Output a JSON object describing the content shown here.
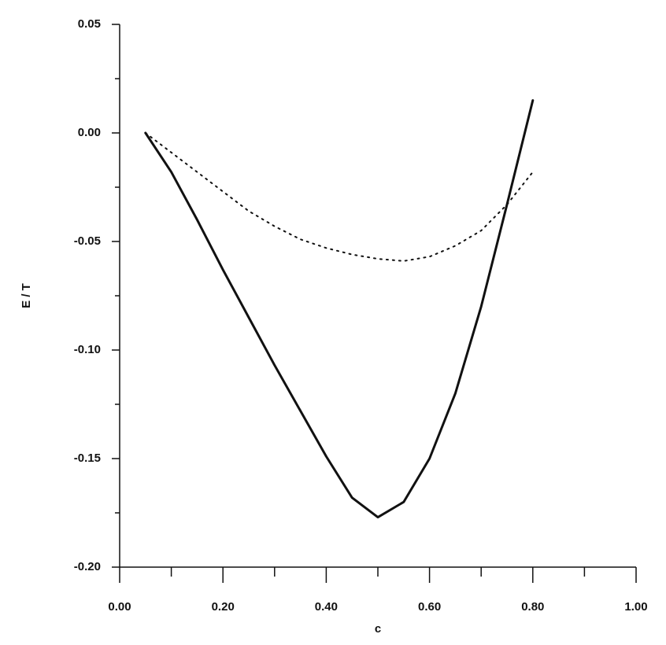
{
  "chart_data": {
    "type": "line",
    "xlabel": "c",
    "ylabel": "E / T",
    "x": [
      0.05,
      0.1,
      0.15,
      0.2,
      0.25,
      0.3,
      0.35,
      0.4,
      0.45,
      0.5,
      0.55,
      0.6,
      0.65,
      0.7,
      0.75,
      0.8
    ],
    "series": [
      {
        "color": "#111111",
        "line_style": "solid",
        "values": [
          0,
          -0.018,
          -0.04,
          -0.063,
          -0.085,
          -0.107,
          -0.128,
          -0.149,
          -0.168,
          -0.177,
          -0.17,
          -0.15,
          -0.12,
          -0.08,
          -0.033,
          0.015
        ]
      },
      {
        "color": "#111111",
        "line_style": "dotted",
        "values": [
          0,
          -0.009,
          -0.018,
          -0.027,
          -0.036,
          -0.043,
          -0.049,
          -0.053,
          -0.056,
          -0.058,
          -0.059,
          -0.057,
          -0.052,
          -0.045,
          -0.033,
          -0.018
        ]
      }
    ],
    "xlim": [
      0,
      1
    ],
    "ylim": [
      -0.2,
      0.05
    ],
    "xticks": [
      {
        "value": 0,
        "label": "0.00"
      },
      {
        "value": 0.2,
        "label": "0.20"
      },
      {
        "value": 0.4,
        "label": "0.40"
      },
      {
        "value": 0.6,
        "label": "0.60"
      },
      {
        "value": 0.8,
        "label": "0.80"
      },
      {
        "value": 1,
        "label": "1.00"
      }
    ],
    "xminor_ticks": [
      0.1,
      0.3,
      0.5,
      0.7,
      0.9
    ],
    "yticks": [
      {
        "value": -0.2,
        "label": "-0.20"
      },
      {
        "value": -0.15,
        "label": "-0.15"
      },
      {
        "value": -0.1,
        "label": "-0.10"
      },
      {
        "value": -0.05,
        "label": "-0.05"
      },
      {
        "value": 0,
        "label": "0.00"
      },
      {
        "value": 0.05,
        "label": "0.05"
      }
    ],
    "yminor_ticks": [
      -0.175,
      -0.125,
      -0.075,
      -0.025,
      0.025
    ],
    "grid": false
  }
}
